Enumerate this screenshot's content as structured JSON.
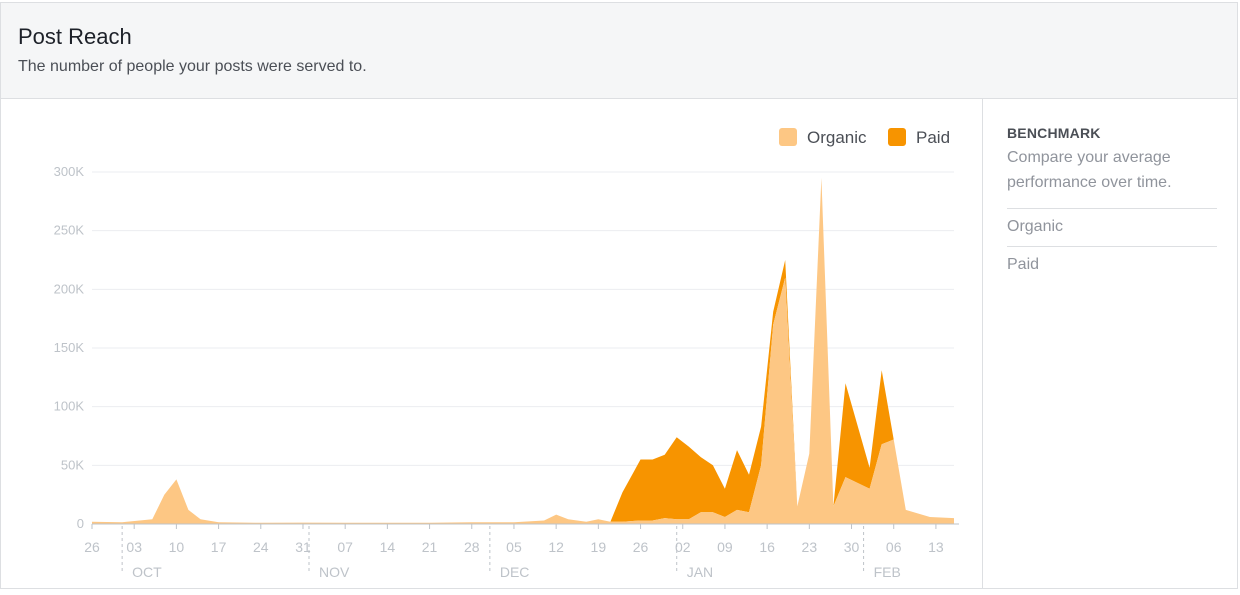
{
  "header": {
    "title": "Post Reach",
    "subtitle": "The number of people your posts were served to."
  },
  "benchmark": {
    "title": "BENCHMARK",
    "description": "Compare your average performance over time.",
    "items": [
      "Organic",
      "Paid"
    ]
  },
  "colors": {
    "organic": "#fdc784",
    "paid": "#f79400",
    "grid": "#ebedf0",
    "axis_text": "#bec3c9",
    "axis_line": "#bec3c9"
  },
  "chart_data": {
    "type": "area",
    "stacked": true,
    "legend": {
      "placement": "top-right",
      "entries": [
        "Organic",
        "Paid"
      ]
    },
    "ylim": [
      0,
      300000
    ],
    "yticks": [
      0,
      50000,
      100000,
      150000,
      200000,
      250000,
      300000
    ],
    "ytick_labels": [
      "0",
      "50K",
      "100K",
      "150K",
      "200K",
      "250K",
      "300K"
    ],
    "x_range": [
      "2017-09-26",
      "2018-02-16"
    ],
    "xticks": [
      {
        "date": "2017-09-26",
        "label": "26"
      },
      {
        "date": "2017-10-03",
        "label": "03"
      },
      {
        "date": "2017-10-10",
        "label": "10"
      },
      {
        "date": "2017-10-17",
        "label": "17"
      },
      {
        "date": "2017-10-24",
        "label": "24"
      },
      {
        "date": "2017-10-31",
        "label": "31"
      },
      {
        "date": "2017-11-07",
        "label": "07"
      },
      {
        "date": "2017-11-14",
        "label": "14"
      },
      {
        "date": "2017-11-21",
        "label": "21"
      },
      {
        "date": "2017-11-28",
        "label": "28"
      },
      {
        "date": "2017-12-05",
        "label": "05"
      },
      {
        "date": "2017-12-12",
        "label": "12"
      },
      {
        "date": "2017-12-19",
        "label": "19"
      },
      {
        "date": "2017-12-26",
        "label": "26"
      },
      {
        "date": "2018-01-02",
        "label": "02"
      },
      {
        "date": "2018-01-09",
        "label": "09"
      },
      {
        "date": "2018-01-16",
        "label": "16"
      },
      {
        "date": "2018-01-23",
        "label": "23"
      },
      {
        "date": "2018-01-30",
        "label": "30"
      },
      {
        "date": "2018-02-06",
        "label": "06"
      },
      {
        "date": "2018-02-13",
        "label": "13"
      }
    ],
    "months": [
      {
        "label": "OCT",
        "start": "2017-10-01"
      },
      {
        "label": "NOV",
        "start": "2017-11-01"
      },
      {
        "label": "DEC",
        "start": "2017-12-01"
      },
      {
        "label": "JAN",
        "start": "2018-01-01"
      },
      {
        "label": "FEB",
        "start": "2018-02-01"
      }
    ],
    "series": [
      {
        "name": "Organic",
        "x": [
          "2017-09-26",
          "2017-10-01",
          "2017-10-06",
          "2017-10-08",
          "2017-10-10",
          "2017-10-12",
          "2017-10-14",
          "2017-10-17",
          "2017-10-24",
          "2017-10-31",
          "2017-11-07",
          "2017-11-14",
          "2017-11-21",
          "2017-11-28",
          "2017-12-05",
          "2017-12-10",
          "2017-12-12",
          "2017-12-14",
          "2017-12-17",
          "2017-12-19",
          "2017-12-21",
          "2017-12-23",
          "2017-12-26",
          "2017-12-28",
          "2017-12-30",
          "2018-01-01",
          "2018-01-03",
          "2018-01-05",
          "2018-01-07",
          "2018-01-09",
          "2018-01-11",
          "2018-01-13",
          "2018-01-15",
          "2018-01-17",
          "2018-01-19",
          "2018-01-21",
          "2018-01-23",
          "2018-01-25",
          "2018-01-27",
          "2018-01-29",
          "2018-02-02",
          "2018-02-04",
          "2018-02-06",
          "2018-02-08",
          "2018-02-12",
          "2018-02-16"
        ],
        "values": [
          2000,
          1500,
          4000,
          25000,
          38000,
          12000,
          4000,
          1500,
          1000,
          1200,
          1000,
          1000,
          1000,
          1500,
          1500,
          3000,
          8000,
          4000,
          2000,
          4000,
          2000,
          2000,
          3000,
          3000,
          5000,
          4000,
          4000,
          10000,
          10000,
          6000,
          12000,
          10000,
          50000,
          170000,
          210000,
          15000,
          60000,
          295000,
          15000,
          40000,
          30000,
          68000,
          72000,
          12000,
          6000,
          5000
        ]
      },
      {
        "name": "Paid",
        "x": [
          "2017-09-26",
          "2017-12-21",
          "2017-12-23",
          "2017-12-26",
          "2017-12-28",
          "2017-12-30",
          "2018-01-01",
          "2018-01-03",
          "2018-01-05",
          "2018-01-07",
          "2018-01-09",
          "2018-01-11",
          "2018-01-13",
          "2018-01-15",
          "2018-01-17",
          "2018-01-19",
          "2018-01-21",
          "2018-01-23",
          "2018-01-25",
          "2018-01-27",
          "2018-01-29",
          "2018-02-02",
          "2018-02-04",
          "2018-02-06",
          "2018-02-08",
          "2018-02-16"
        ],
        "values": [
          0,
          0,
          25000,
          52000,
          52000,
          54000,
          70000,
          62000,
          47000,
          40000,
          24000,
          51000,
          32000,
          33000,
          11000,
          15000,
          0,
          0,
          0,
          0,
          80000,
          18000,
          63000,
          0,
          0,
          0
        ]
      }
    ]
  }
}
